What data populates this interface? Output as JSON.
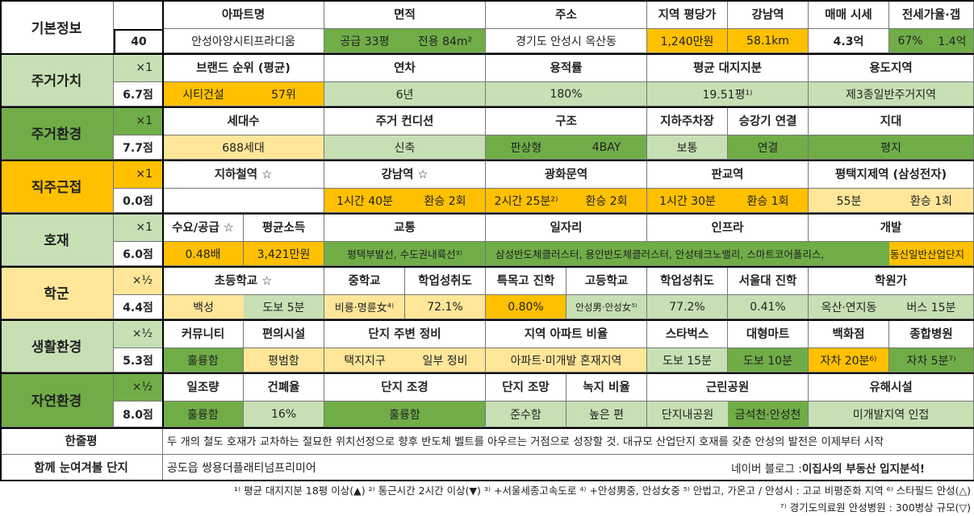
{
  "basic": {
    "label": "기본정보",
    "count": "40",
    "headers": [
      "아파트명",
      "면적",
      "주소",
      "지역 평당가",
      "강남역",
      "매매 시세",
      "전세가율·갭"
    ],
    "values": [
      "안성아양시티프라디움",
      "공급 33평",
      "전용 84m²",
      "경기도 안성시 옥산동",
      "1,240만원",
      "58.1km",
      "4.3억",
      "67%",
      "1.4억"
    ]
  },
  "sections": [
    {
      "title": "주거가치",
      "mult": "×1",
      "score": "6.7점",
      "headers": [
        "브랜드 순위 (평균)",
        "연차",
        "용적률",
        "평균 대지지분",
        "용도지역"
      ],
      "values": [
        "시티건설",
        "57위",
        "6년",
        "180%",
        "19.51평¹⁾",
        "제3종일반주거지역"
      ]
    },
    {
      "title": "주거환경",
      "mult": "×1",
      "score": "7.7점",
      "headers": [
        "세대수",
        "주거 컨디션",
        "구조",
        "지하주차장",
        "승강기 연결",
        "지대"
      ],
      "values": [
        "688세대",
        "신축",
        "판상형",
        "4BAY",
        "보통",
        "연결",
        "평지"
      ]
    },
    {
      "title": "직주근접",
      "mult": "×1",
      "score": "0.0점",
      "headers": [
        "지하철역 ☆",
        "강남역 ☆",
        "광화문역",
        "판교역",
        "평택지제역 (삼성전자)"
      ],
      "values": [
        "",
        "1시간 40분",
        "환승 2회",
        "2시간 25분²⁾",
        "환승 2회",
        "1시간 30분",
        "환승 1회",
        "55분",
        "환승 1회"
      ]
    },
    {
      "title": "호재",
      "mult": "×1",
      "score": "6.0점",
      "headers": [
        "수요/공급 ☆",
        "평균소득",
        "교통",
        "일자리",
        "인프라",
        "개발"
      ],
      "values": [
        "0.48배",
        "3,421만원",
        "평택부발선, 수도권내륙선³⁾",
        "삼성반도체클러스터, 용인반도체클러스터, 안성테크노밸리, 스마트코어폴리스,",
        "동신일반산업단지"
      ]
    },
    {
      "title": "학군",
      "mult": "×½",
      "score": "4.4점",
      "headers": [
        "초등학교 ☆",
        "중학교",
        "학업성취도",
        "특목고 진학",
        "고등학교",
        "학업성취도",
        "서울대 진학",
        "학원가"
      ],
      "values": [
        "백성",
        "도보 5분",
        "비룡·명륜女⁴⁾",
        "72.1%",
        "0.80%",
        "안성男·안성女⁵⁾",
        "77.2%",
        "0.41%",
        "옥산·연지동",
        "버스 15분"
      ]
    },
    {
      "title": "생활환경",
      "mult": "×½",
      "score": "5.3점",
      "headers": [
        "커뮤니티",
        "편의시설",
        "단지 주변 정비",
        "지역 아파트 비율",
        "스타벅스",
        "대형마트",
        "백화점",
        "종합병원"
      ],
      "values": [
        "훌륭함",
        "평범함",
        "택지지구",
        "일부 정비",
        "아파트·미개발 혼재지역",
        "도보 15분",
        "도보 10분",
        "자차 20분⁶⁾",
        "자차 5분⁷⁾"
      ]
    },
    {
      "title": "자연환경",
      "mult": "×½",
      "score": "8.0점",
      "headers": [
        "일조량",
        "건폐율",
        "단지 조경",
        "단지 조망",
        "녹지 비율",
        "근린공원",
        "유해시설"
      ],
      "values": [
        "훌륭함",
        "16%",
        "훌륭함",
        "준수함",
        "높은 편",
        "단지내공원",
        "금석천·안성천",
        "미개발지역 인접"
      ]
    }
  ],
  "summary": {
    "label": "한줄평",
    "text": "두 개의 철도 호재가 교차하는 절묘한 위치선정으로 향후 반도체 벨트를 아우르는 거점으로 성장할 것. 대규모 산업단지 호재를 갖춘 안성의 발전은 이제부터 시작"
  },
  "related": {
    "label": "함께 눈여겨볼 단지",
    "text": "공도읍 쌍용더플래티넘프리미어",
    "blog_prefix": "네이버 블로그 : ",
    "blog_name": "이집사의 부동산 입지분석!"
  },
  "footnotes": [
    "¹⁾ 평균 대지지분 18평 이상(▲) ²⁾ 통근시간 2시간 이상(▼) ³⁾ +서울세종고속도로 ⁴⁾ +안성男중, 안성女중 ⁵⁾ 안법고, 가온고 / 안성시 : 고교 비평준화 지역 ⁶⁾ 스타필드 안성(△)",
    "⁷⁾ 경기도의료원 안성병원 : 300병상 규모(▽)"
  ],
  "colors": {
    "light_green": "#c6e0b4",
    "dark_green": "#70ad47",
    "orange": "#ffc000",
    "light_yellow": "#ffe699"
  }
}
